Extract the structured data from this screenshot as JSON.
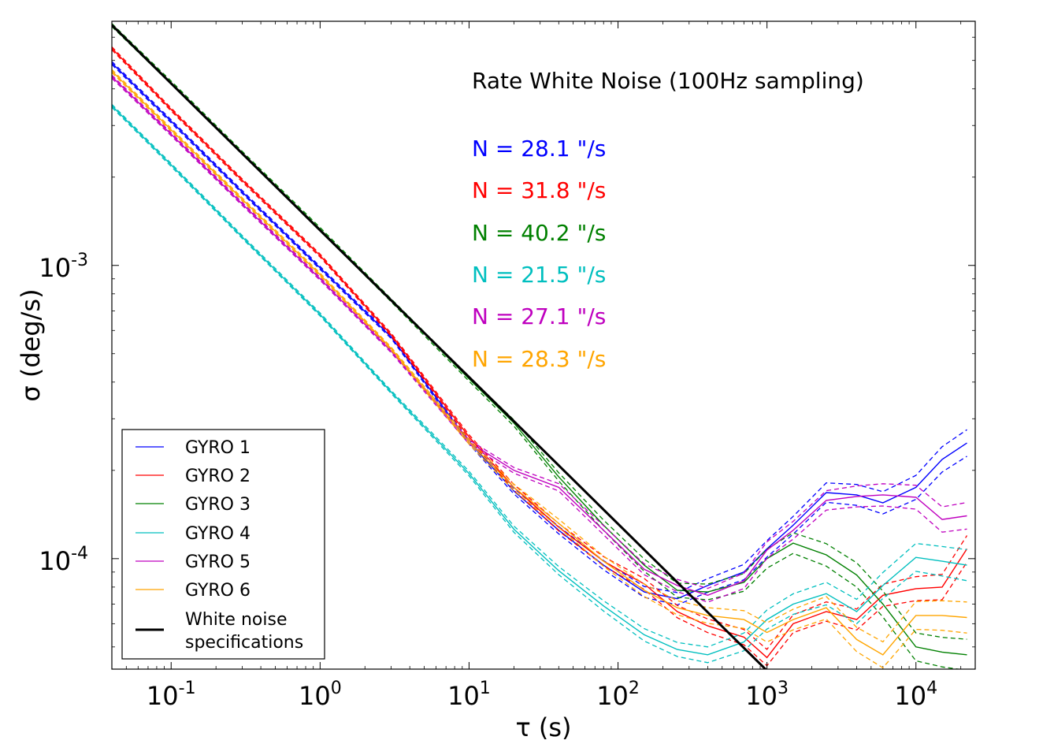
{
  "chart_data": {
    "type": "line",
    "xscale": "log",
    "yscale": "log",
    "xlabel": "τ (s)",
    "ylabel": "σ (deg/s)",
    "xlim": [
      0.04,
      25000
    ],
    "ylim": [
      4.2e-05,
      0.0068
    ],
    "x_ticks": [
      {
        "value": 0.1,
        "base": "10",
        "exp": "-1"
      },
      {
        "value": 1,
        "base": "10",
        "exp": "0"
      },
      {
        "value": 10,
        "base": "10",
        "exp": "1"
      },
      {
        "value": 100,
        "base": "10",
        "exp": "2"
      },
      {
        "value": 1000,
        "base": "10",
        "exp": "3"
      },
      {
        "value": 10000,
        "base": "10",
        "exp": "4"
      }
    ],
    "y_ticks": [
      {
        "value": 0.001,
        "base": "10",
        "exp": "-3"
      },
      {
        "value": 0.0001,
        "base": "10",
        "exp": "-4"
      }
    ],
    "annotations": {
      "title": "Rate White Noise (100Hz sampling)",
      "noise_values": [
        {
          "text": "N = 28.1 \"/s",
          "color": "#0000ff"
        },
        {
          "text": "N = 31.8 \"/s",
          "color": "#ff0000"
        },
        {
          "text": "N = 40.2 \"/s",
          "color": "#008000"
        },
        {
          "text": "N = 21.5 \"/s",
          "color": "#00bfbf"
        },
        {
          "text": "N = 27.1 \"/s",
          "color": "#bf00bf"
        },
        {
          "text": "N = 28.3 \"/s",
          "color": "#ffa500"
        }
      ]
    },
    "series": [
      {
        "name": "GYRO 1",
        "color": "#0000ff",
        "x": [
          0.04,
          0.1,
          0.3,
          1,
          3,
          10,
          20,
          40,
          80,
          150,
          250,
          400,
          700,
          1000,
          1500,
          2500,
          4000,
          6000,
          10000,
          15000,
          22000
        ],
        "y": [
          0.0049,
          0.0031,
          0.00178,
          0.00098,
          0.00057,
          0.00025,
          0.00017,
          0.000125,
          9.5e-05,
          7.7e-05,
          7.3e-05,
          8.1e-05,
          9e-05,
          0.000108,
          0.00013,
          0.000168,
          0.000165,
          0.000155,
          0.000175,
          0.000218,
          0.000248
        ],
        "band": 0.1
      },
      {
        "name": "GYRO 2",
        "color": "#ff0000",
        "x": [
          0.04,
          0.1,
          0.3,
          1,
          3,
          10,
          20,
          40,
          80,
          150,
          250,
          400,
          700,
          1000,
          1500,
          2500,
          4000,
          6000,
          10000,
          15000,
          22000
        ],
        "y": [
          0.0055,
          0.0034,
          0.00195,
          0.00108,
          0.00058,
          0.00026,
          0.000175,
          0.000128,
          9.8e-05,
          8.2e-05,
          6.6e-05,
          5.9e-05,
          5.4e-05,
          4.6e-05,
          6e-05,
          6.6e-05,
          6.2e-05,
          7.5e-05,
          7.9e-05,
          8e-05,
          0.000108
        ],
        "band": 0.1
      },
      {
        "name": "GYRO 3",
        "color": "#008000",
        "x": [
          0.04,
          0.1,
          0.3,
          1,
          3,
          10,
          20,
          40,
          80,
          150,
          250,
          400,
          700,
          1000,
          1500,
          2500,
          4000,
          6000,
          10000,
          15000,
          22000
        ],
        "y": [
          0.0066,
          0.0042,
          0.00242,
          0.00133,
          0.00076,
          0.00041,
          0.00029,
          0.00019,
          0.00013,
          9.5e-05,
          7.8e-05,
          7.7e-05,
          8.3e-05,
          0.0001,
          0.000113,
          0.000103,
          8.8e-05,
          7e-05,
          5e-05,
          4.8e-05,
          4.7e-05
        ],
        "band": 0.12
      },
      {
        "name": "GYRO 4",
        "color": "#00bfbf",
        "x": [
          0.04,
          0.1,
          0.3,
          1,
          3,
          10,
          20,
          40,
          80,
          150,
          250,
          400,
          700,
          1000,
          1500,
          2500,
          4000,
          6000,
          10000,
          15000,
          22000
        ],
        "y": [
          0.0035,
          0.0022,
          0.00125,
          0.00068,
          0.00037,
          0.000195,
          0.000126,
          9.1e-05,
          6.9e-05,
          5.5e-05,
          4.9e-05,
          4.7e-05,
          5.2e-05,
          6.2e-05,
          7e-05,
          7.6e-05,
          6.6e-05,
          8.1e-05,
          0.000101,
          9.8e-05,
          9.5e-05
        ],
        "band": 0.12
      },
      {
        "name": "GYRO 5",
        "color": "#bf00bf",
        "x": [
          0.04,
          0.1,
          0.3,
          1,
          3,
          10,
          20,
          40,
          80,
          150,
          250,
          400,
          700,
          1000,
          1500,
          2500,
          4000,
          6000,
          10000,
          15000,
          22000
        ],
        "y": [
          0.0044,
          0.0028,
          0.00162,
          0.0009,
          0.00051,
          0.00025,
          0.0002,
          0.000175,
          0.000125,
          9.2e-05,
          8.1e-05,
          7.5e-05,
          8.4e-05,
          0.000107,
          0.000125,
          0.000158,
          0.000163,
          0.000165,
          0.000162,
          0.000136,
          0.00014
        ],
        "band": 0.1
      },
      {
        "name": "GYRO 6",
        "color": "#ffa500",
        "x": [
          0.04,
          0.1,
          0.3,
          1,
          3,
          10,
          20,
          40,
          80,
          150,
          250,
          400,
          700,
          1000,
          1500,
          2500,
          4000,
          6000,
          10000,
          15000,
          22000
        ],
        "y": [
          0.0046,
          0.0029,
          0.00168,
          0.00093,
          0.00052,
          0.00025,
          0.000175,
          0.000132,
          9.8e-05,
          7.8e-05,
          6.8e-05,
          6.4e-05,
          6.2e-05,
          5.6e-05,
          6.2e-05,
          6.8e-05,
          5.3e-05,
          4.7e-05,
          6.4e-05,
          6.4e-05,
          6.3e-05
        ],
        "band": 0.12
      },
      {
        "name": "White noise specifications",
        "color": "#000000",
        "line_width": 3,
        "x": [
          0.04,
          1000
        ],
        "y": [
          0.0066,
          4.15e-05
        ]
      }
    ],
    "legend": {
      "position": "lower-left",
      "entries": [
        "GYRO 1",
        "GYRO 2",
        "GYRO 3",
        "GYRO 4",
        "GYRO 5",
        "GYRO 6",
        "White noise",
        "specifications"
      ]
    }
  }
}
